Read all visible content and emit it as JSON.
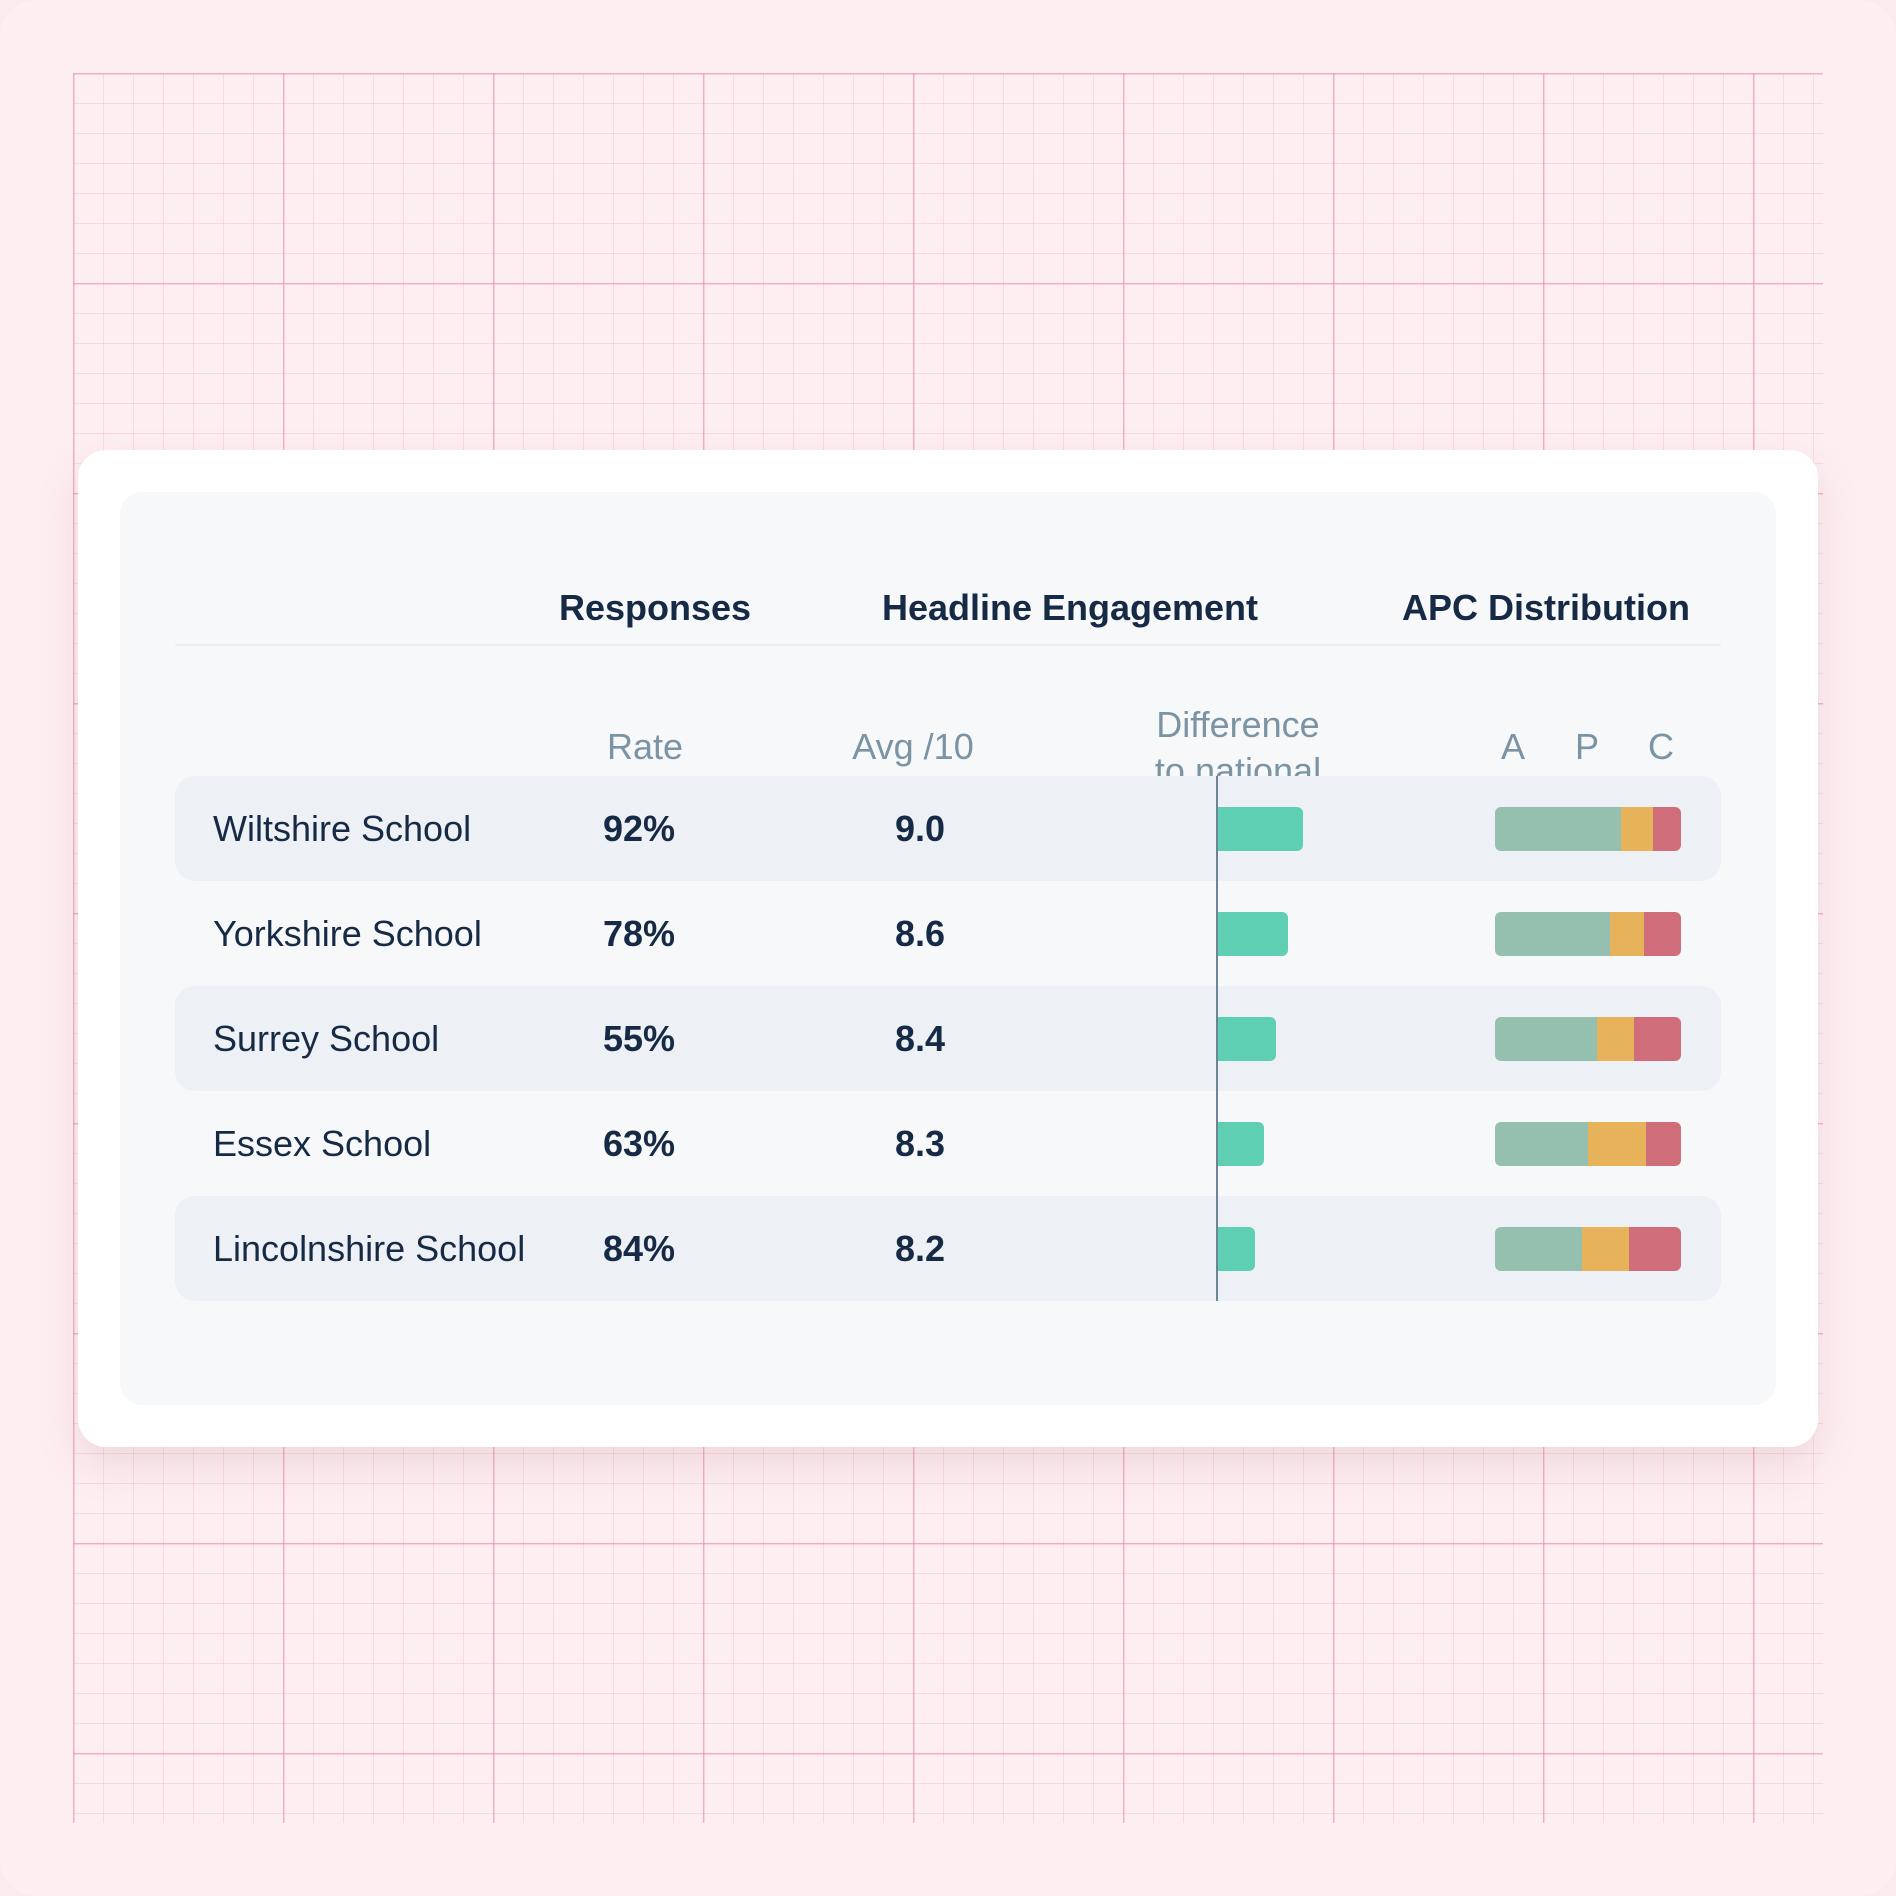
{
  "colors": {
    "difference_bar": "#5ecfb3",
    "apc_a": "#95c0b0",
    "apc_p": "#e6b35a",
    "apc_c": "#cf6d7b"
  },
  "headers": {
    "responses": "Responses",
    "engagement": "Headline Engagement",
    "apc": "APC Distribution"
  },
  "subheaders": {
    "rate": "Rate",
    "avg": "Avg /10",
    "difference_line1": "Difference",
    "difference_line2": "to national",
    "a": "A",
    "p": "P",
    "c": "C"
  },
  "chart_data": {
    "type": "table",
    "columns": [
      "",
      "Rate",
      "Avg /10",
      "Difference to national",
      "APC Distribution"
    ],
    "rows": [
      {
        "name": "Wiltshire School",
        "rate": "92%",
        "avg": "9.0",
        "difference": 0.85,
        "apc": [
          0.68,
          0.17,
          0.15
        ]
      },
      {
        "name": "Yorkshire School",
        "rate": "78%",
        "avg": "8.6",
        "difference": 0.7,
        "apc": [
          0.62,
          0.18,
          0.2
        ]
      },
      {
        "name": "Surrey School",
        "rate": "55%",
        "avg": "8.4",
        "difference": 0.58,
        "apc": [
          0.55,
          0.2,
          0.25
        ]
      },
      {
        "name": "Essex School",
        "rate": "63%",
        "avg": "8.3",
        "difference": 0.46,
        "apc": [
          0.5,
          0.31,
          0.19
        ]
      },
      {
        "name": "Lincolnshire School",
        "rate": "84%",
        "avg": "8.2",
        "difference": 0.37,
        "apc": [
          0.47,
          0.25,
          0.28
        ]
      }
    ]
  }
}
